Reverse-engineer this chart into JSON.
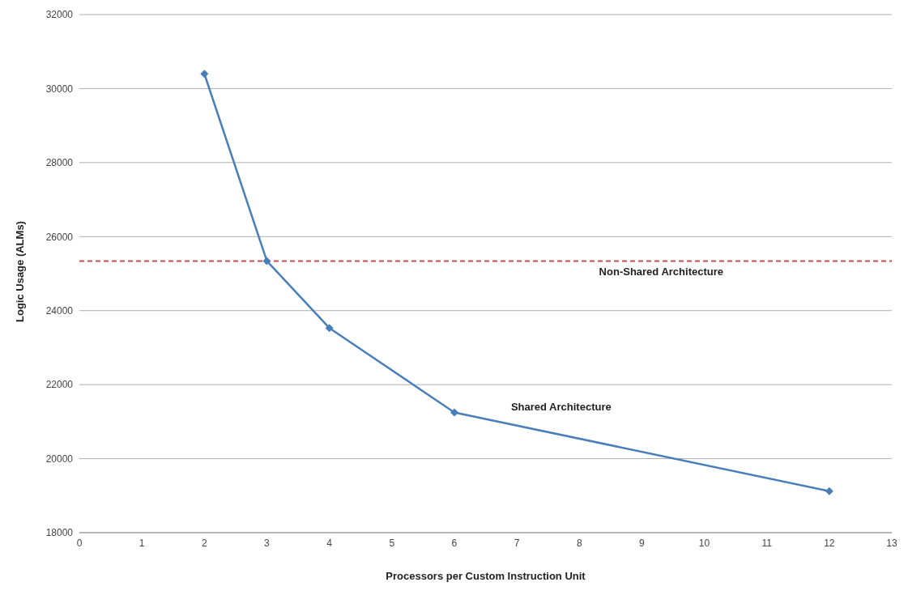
{
  "chart_data": {
    "type": "line",
    "xlabel": "Processors per Custom Instruction Unit",
    "ylabel": "Logic Usage (ALMs)",
    "x": [
      2,
      3,
      4,
      6,
      12
    ],
    "series": [
      {
        "name": "Shared Architecture",
        "color": "#4a7ebb",
        "values": [
          30400,
          25340,
          23530,
          21250,
          19120
        ]
      }
    ],
    "xlim": [
      0,
      13
    ],
    "xticks": [
      0,
      1,
      2,
      3,
      4,
      5,
      6,
      7,
      8,
      9,
      10,
      11,
      12,
      13
    ],
    "ylim": [
      18000,
      32000
    ],
    "yticks": [
      18000,
      20000,
      22000,
      24000,
      26000,
      28000,
      30000,
      32000
    ],
    "ref_lines": [
      {
        "axis": "y",
        "value": 25340,
        "label": "Non-Shared Architecture",
        "color": "#c0504d",
        "line_style": "dashed"
      }
    ],
    "grid": "y",
    "legend": false,
    "marker": "diamond",
    "line_style": "solid"
  }
}
